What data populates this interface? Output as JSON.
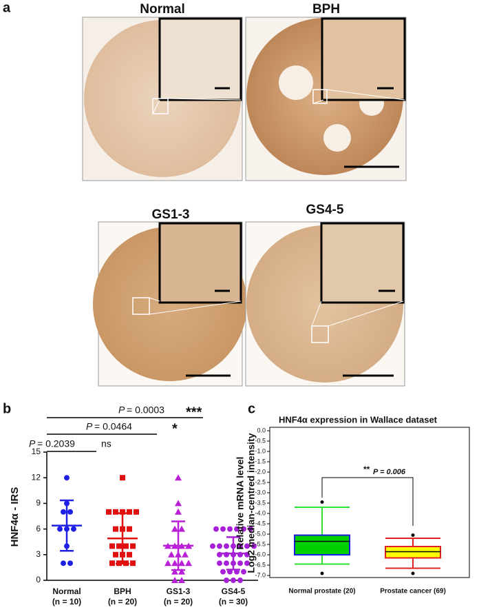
{
  "panels": {
    "a": "a",
    "b": "b",
    "c": "c"
  },
  "micrographs": [
    "Normal",
    "BPH",
    "GS1-3",
    "GS4-5"
  ],
  "chart_data": [
    {
      "type": "dotplot",
      "ylabel": "HNF4α - IRS",
      "categories": [
        "Normal",
        "BPH",
        "GS1-3",
        "GS4-5"
      ],
      "n_labels": [
        "(n = 10)",
        "(n = 20)",
        "(n = 20)",
        "(n = 30)"
      ],
      "colors": [
        "#1f1fe6",
        "#e01010",
        "#b81fd6",
        "#a620d8"
      ],
      "markers": [
        "circle",
        "square",
        "triangle",
        "circle"
      ],
      "groups": [
        [
          12,
          9,
          8,
          8,
          6,
          6,
          6,
          4,
          2,
          2
        ],
        [
          12,
          8,
          8,
          8,
          8,
          8,
          6,
          6,
          6,
          4,
          4,
          4,
          4,
          3,
          3,
          3,
          2,
          2,
          2,
          2
        ],
        [
          12,
          9,
          8,
          6,
          6,
          4,
          4,
          4,
          4,
          3,
          3,
          3,
          2,
          2,
          2,
          2,
          1,
          1,
          0,
          0
        ],
        [
          6,
          6,
          6,
          6,
          6,
          6,
          4,
          4,
          4,
          4,
          4,
          4,
          4,
          3,
          3,
          3,
          3,
          3,
          2,
          2,
          2,
          2,
          2,
          1,
          1,
          1,
          1,
          0,
          0,
          0
        ]
      ],
      "means": [
        6.4,
        4.9,
        4.05,
        3.15
      ],
      "sd": [
        2.95,
        2.95,
        2.85,
        1.9
      ],
      "ylim": [
        0,
        15
      ],
      "yticks": [
        0,
        3,
        6,
        9,
        12,
        15
      ],
      "comparisons": [
        {
          "p_symbol": "P",
          "p_text": "= 0.2039",
          "stars": "ns"
        },
        {
          "p_symbol": "P",
          "p_text": "= 0.0464",
          "stars": "*"
        },
        {
          "p_symbol": "P",
          "p_text": "= 0.0003",
          "stars": "***"
        }
      ]
    },
    {
      "type": "box",
      "title": "HNF4α expression in Wallace dataset",
      "ylabel": [
        "Relative mRNA level",
        "Log2 median-centred intensity"
      ],
      "categories": [
        "Normal prostate (20)",
        "Prostate cancer (69)"
      ],
      "fills": [
        "#00d000",
        "#ffff00"
      ],
      "edges": [
        "#1a1ae0",
        "#e02020"
      ],
      "whisker_colors": [
        "#30e030",
        "#e02020"
      ],
      "whisker_high": [
        -3.7,
        -5.2
      ],
      "q3": [
        -5.05,
        -5.6
      ],
      "median": [
        -5.35,
        -5.85
      ],
      "q1": [
        -6.0,
        -6.15
      ],
      "whisker_low": [
        -6.45,
        -6.65
      ],
      "outliers": [
        [
          -3.45,
          -6.9
        ],
        [
          -5.05,
          -6.9
        ]
      ],
      "ylim": [
        -7.1,
        0
      ],
      "yticks": [
        {
          "value": 0,
          "label": "0.0"
        },
        -0.5,
        {
          "value": -1,
          "label": "-1.0"
        },
        -1.5,
        {
          "value": -2,
          "label": "-2.0"
        },
        -2.5,
        {
          "value": -3,
          "label": "-3.0"
        },
        -3.5,
        {
          "value": -4,
          "label": "-4.0"
        },
        -4.5,
        {
          "value": -5,
          "label": "-5.0"
        },
        -5.5,
        {
          "value": -6,
          "label": "-6.0"
        },
        -6.5,
        {
          "value": -7,
          "label": "-7.0"
        }
      ],
      "annotation": {
        "stars": "**",
        "p_text": "P = 0.006"
      }
    }
  ]
}
